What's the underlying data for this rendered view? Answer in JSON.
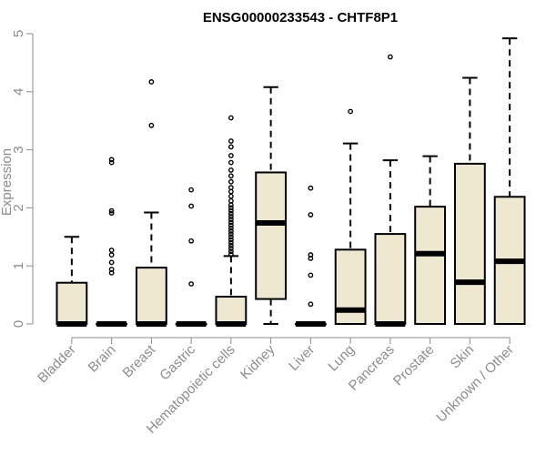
{
  "chart_data": {
    "type": "box",
    "title": "ENSG00000233543 - CHTF8P1",
    "xlabel": "",
    "ylabel": "Expression",
    "ylim": [
      0,
      5
    ],
    "yticks": [
      "0",
      "1",
      "2",
      "3",
      "4",
      "5"
    ],
    "grid": false,
    "legend": "none",
    "colors": {
      "box_fill": "#efe8d0",
      "box_stroke": "#000000",
      "axis": "#8c8c8c"
    },
    "categories": [
      "Bladder",
      "Brain",
      "Breast",
      "Gastric",
      "Hematopoietic cells",
      "Kidney",
      "Liver",
      "Lung",
      "Pancreas",
      "Prostate",
      "Skin",
      "Unknown / Other"
    ],
    "boxes": [
      {
        "category": "Bladder",
        "lower_whisker": 0,
        "q1": 0,
        "median": 0,
        "q3": 0.71,
        "upper_whisker": 1.5,
        "outliers": []
      },
      {
        "category": "Brain",
        "lower_whisker": 0,
        "q1": 0,
        "median": 0,
        "q3": 0,
        "upper_whisker": 0,
        "outliers": [
          0.88,
          0.94,
          1.06,
          1.19,
          1.27,
          1.91,
          1.95,
          2.78,
          2.83
        ]
      },
      {
        "category": "Breast",
        "lower_whisker": 0,
        "q1": 0,
        "median": 0,
        "q3": 0.97,
        "upper_whisker": 1.92,
        "outliers": [
          3.42,
          4.17
        ]
      },
      {
        "category": "Gastric",
        "lower_whisker": 0,
        "q1": 0,
        "median": 0,
        "q3": 0,
        "upper_whisker": 0,
        "outliers": [
          0.69,
          1.43,
          2.03,
          2.31
        ]
      },
      {
        "category": "Hematopoietic cells",
        "lower_whisker": 0,
        "q1": 0,
        "median": 0,
        "q3": 0.47,
        "upper_whisker": 1.17,
        "outliers": [
          1.2,
          1.25,
          1.3,
          1.35,
          1.4,
          1.45,
          1.5,
          1.55,
          1.6,
          1.65,
          1.7,
          1.75,
          1.8,
          1.85,
          1.9,
          1.95,
          2.0,
          2.05,
          2.12,
          2.2,
          2.28,
          2.35,
          2.45,
          2.55,
          2.65,
          2.78,
          2.9,
          3.05,
          3.15,
          3.55
        ]
      },
      {
        "category": "Kidney",
        "lower_whisker": 0,
        "q1": 0.43,
        "median": 1.74,
        "q3": 2.61,
        "upper_whisker": 4.08,
        "outliers": []
      },
      {
        "category": "Liver",
        "lower_whisker": 0,
        "q1": 0,
        "median": 0,
        "q3": 0,
        "upper_whisker": 0,
        "outliers": [
          0.34,
          0.84,
          1.13,
          1.19,
          1.88,
          2.34
        ]
      },
      {
        "category": "Lung",
        "lower_whisker": 0,
        "q1": 0,
        "median": 0.24,
        "q3": 1.28,
        "upper_whisker": 3.11,
        "outliers": [
          3.66
        ]
      },
      {
        "category": "Pancreas",
        "lower_whisker": 0,
        "q1": 0,
        "median": 0,
        "q3": 1.55,
        "upper_whisker": 2.82,
        "outliers": [
          4.6
        ]
      },
      {
        "category": "Prostate",
        "lower_whisker": 0,
        "q1": 0,
        "median": 1.21,
        "q3": 2.02,
        "upper_whisker": 2.89,
        "outliers": []
      },
      {
        "category": "Skin",
        "lower_whisker": 0,
        "q1": 0,
        "median": 0.72,
        "q3": 2.76,
        "upper_whisker": 4.24,
        "outliers": []
      },
      {
        "category": "Unknown / Other",
        "lower_whisker": 0,
        "q1": 0,
        "median": 1.08,
        "q3": 2.19,
        "upper_whisker": 4.92,
        "outliers": []
      }
    ]
  }
}
